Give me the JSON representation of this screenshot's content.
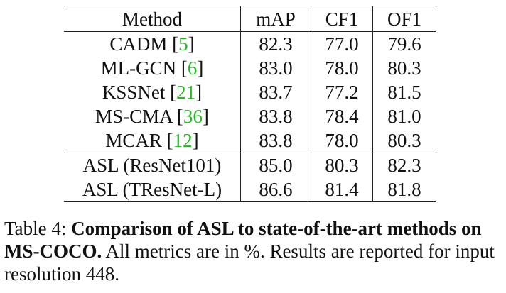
{
  "table": {
    "headers": [
      "Method",
      "mAP",
      "CF1",
      "OF1"
    ],
    "rows": [
      {
        "name": "CADM",
        "ref": "5",
        "map": "82.3",
        "cf1": "77.0",
        "of1": "79.6"
      },
      {
        "name": "ML-GCN",
        "ref": "6",
        "map": "83.0",
        "cf1": "78.0",
        "of1": "80.3"
      },
      {
        "name": "KSSNet",
        "ref": "21",
        "map": "83.7",
        "cf1": "77.2",
        "of1": "81.5"
      },
      {
        "name": "MS-CMA",
        "ref": "36",
        "map": "83.8",
        "cf1": "78.4",
        "of1": "81.0"
      },
      {
        "name": "MCAR",
        "ref": "12",
        "map": "83.8",
        "cf1": "78.0",
        "of1": "80.3"
      },
      {
        "name": "ASL (ResNet101)",
        "ref": "",
        "map": "85.0",
        "cf1": "80.3",
        "of1": "82.3"
      },
      {
        "name": "ASL (TResNet-L)",
        "ref": "",
        "map": "86.6",
        "cf1": "81.4",
        "of1": "81.8"
      }
    ]
  },
  "caption": {
    "label": "Table 4:",
    "bold": "Comparison of ASL to state-of-the-art methods on MS-COCO.",
    "rest": "All metrics are in %. Results are reported for input resolution 448."
  }
}
